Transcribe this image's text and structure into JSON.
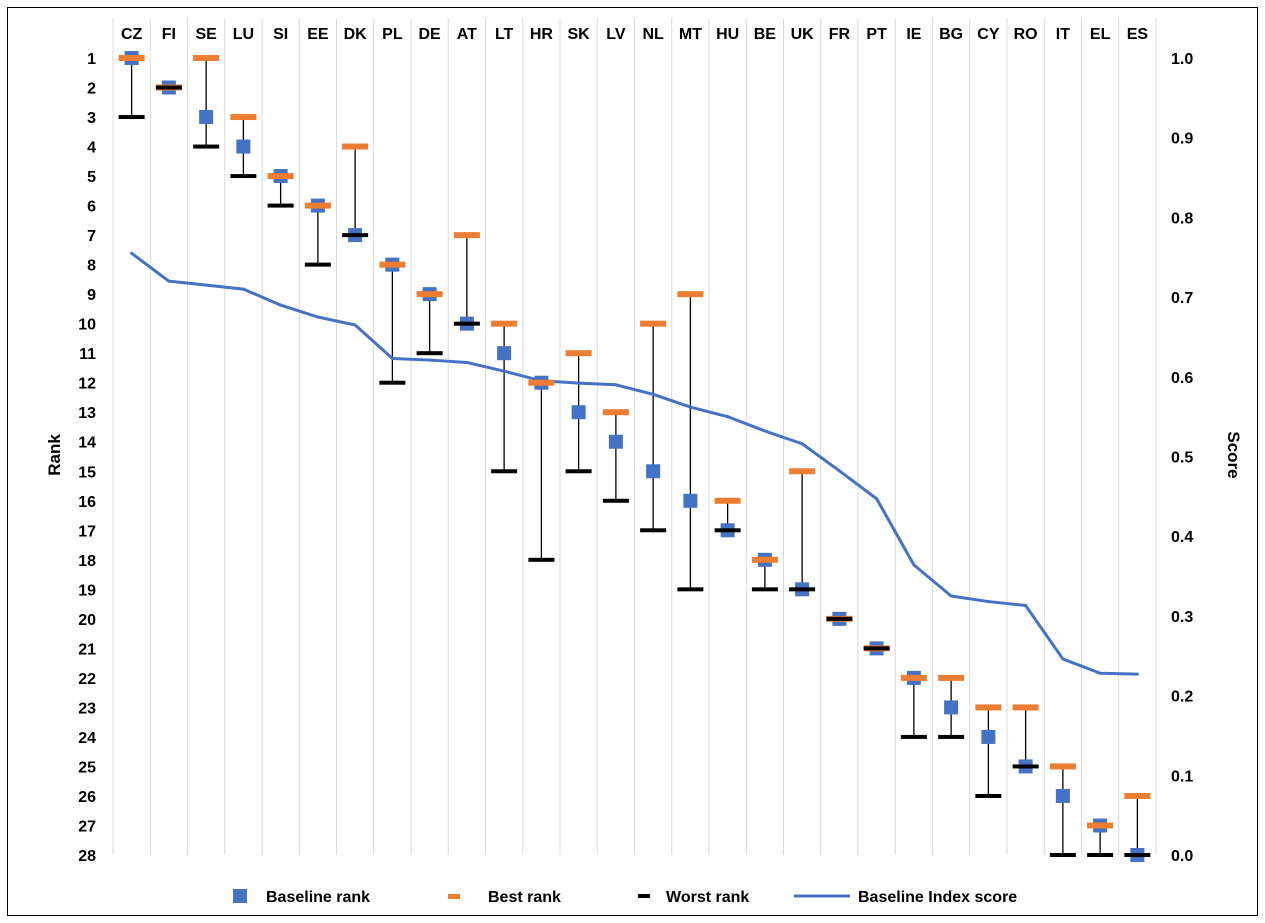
{
  "chart_data": {
    "type": "line",
    "categories": [
      "CZ",
      "FI",
      "SE",
      "LU",
      "SI",
      "EE",
      "DK",
      "PL",
      "DE",
      "AT",
      "LT",
      "HR",
      "SK",
      "LV",
      "NL",
      "MT",
      "HU",
      "BE",
      "UK",
      "FR",
      "PT",
      "IE",
      "BG",
      "CY",
      "RO",
      "IT",
      "EL",
      "ES"
    ],
    "series": [
      {
        "name": "Baseline rank",
        "axis": "left",
        "marker": "square",
        "color": "#4472C4",
        "values": [
          1,
          2,
          3,
          4,
          5,
          6,
          7,
          8,
          9,
          10,
          11,
          12,
          13,
          14,
          15,
          16,
          17,
          18,
          19,
          20,
          21,
          22,
          23,
          24,
          25,
          26,
          27,
          28
        ]
      },
      {
        "name": "Best rank",
        "axis": "left",
        "marker": "dash",
        "color": "#ED7D31",
        "values": [
          1,
          2,
          1,
          3,
          5,
          6,
          4,
          8,
          9,
          7,
          10,
          12,
          11,
          13,
          10,
          9,
          16,
          18,
          15,
          20,
          21,
          22,
          22,
          23,
          23,
          25,
          27,
          26
        ]
      },
      {
        "name": "Worst rank",
        "axis": "left",
        "marker": "dash",
        "color": "#000000",
        "values": [
          3,
          2,
          4,
          5,
          6,
          8,
          7,
          12,
          11,
          10,
          15,
          18,
          15,
          16,
          17,
          19,
          17,
          19,
          19,
          20,
          21,
          24,
          24,
          26,
          25,
          28,
          28,
          28
        ]
      },
      {
        "name": "Baseline Index score",
        "axis": "right",
        "marker": "line",
        "color": "#4472C4",
        "values": [
          0.755,
          0.72,
          0.715,
          0.71,
          0.69,
          0.675,
          0.665,
          0.623,
          0.621,
          0.618,
          0.607,
          0.595,
          0.592,
          0.59,
          0.578,
          0.562,
          0.55,
          0.532,
          0.516,
          0.482,
          0.447,
          0.364,
          0.325,
          0.318,
          0.313,
          0.246,
          0.228,
          0.227
        ]
      }
    ],
    "ylabel": "Rank",
    "y2label": "Score",
    "ylim": [
      1,
      28
    ],
    "y_reversed": true,
    "y2lim": [
      0.0,
      1.0
    ],
    "yticks": [
      "1",
      "2",
      "3",
      "4",
      "5",
      "6",
      "7",
      "8",
      "9",
      "10",
      "11",
      "12",
      "13",
      "14",
      "15",
      "16",
      "17",
      "18",
      "19",
      "20",
      "21",
      "22",
      "23",
      "24",
      "25",
      "26",
      "27",
      "28"
    ],
    "y2ticks": [
      "1.0",
      "0.9",
      "0.8",
      "0.7",
      "0.6",
      "0.5",
      "0.4",
      "0.3",
      "0.2",
      "0.1",
      "0.0"
    ],
    "grid": "vertical",
    "legend": "bottom"
  }
}
